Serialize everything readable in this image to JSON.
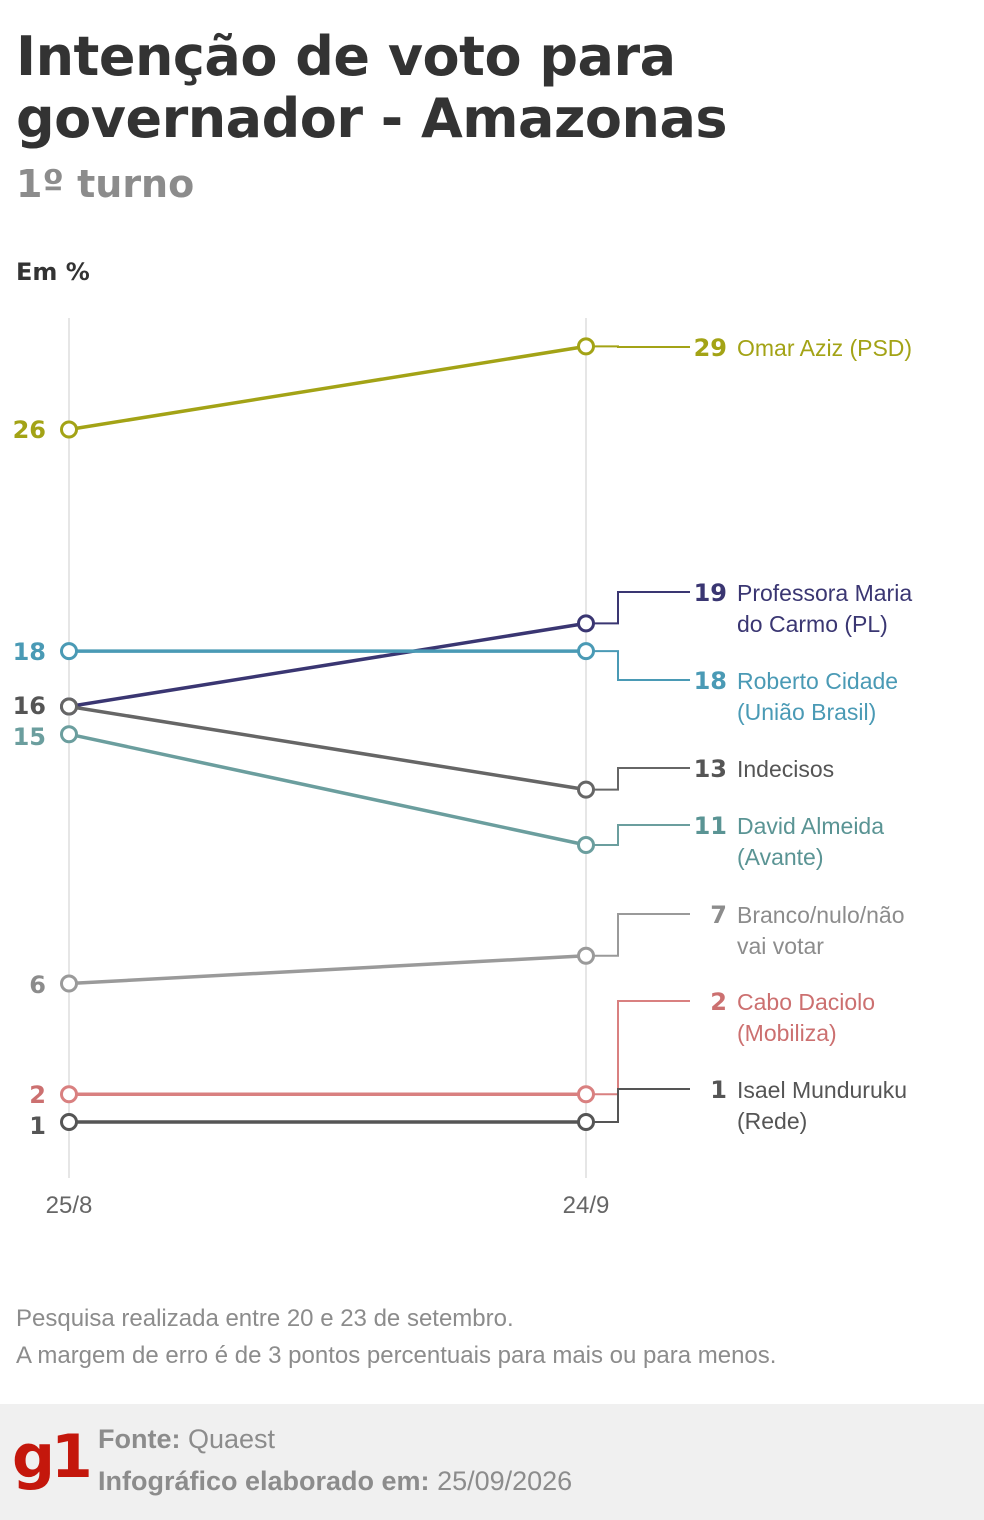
{
  "title": "Intenção de voto para governador - Amazonas",
  "subtitle": "1º turno",
  "unit_label": "Em %",
  "notes": [
    "Pesquisa realizada entre 20 e 23 de setembro.",
    "A margem de erro é de 3 pontos percentuais para mais ou para menos."
  ],
  "footer": {
    "logo": "g1",
    "source_label": "Fonte:",
    "source_value": "Quaest",
    "date_label": "Infográfico elaborado em:",
    "date_value": "25/09/2026"
  },
  "chart_data": {
    "type": "line",
    "x": [
      "25/8",
      "24/9"
    ],
    "ylim": [
      1,
      29
    ],
    "grid": "vertical lines at each survey date",
    "series": [
      {
        "name": "Omar Aziz (PSD)",
        "label_lines": [
          "Omar Aziz (PSD)"
        ],
        "values": [
          26,
          29
        ],
        "color": "#a3a316",
        "label_color": "#a3a316"
      },
      {
        "name": "Professora Maria do Carmo (PL)",
        "label_lines": [
          "Professora Maria",
          "do Carmo (PL)"
        ],
        "values": [
          16,
          19
        ],
        "color": "#3a3672",
        "label_color": "#3a3672"
      },
      {
        "name": "Roberto Cidade (União Brasil)",
        "label_lines": [
          "Roberto Cidade",
          "(União Brasil)"
        ],
        "values": [
          18,
          18
        ],
        "color": "#4a9ab5",
        "label_color": "#4a9ab5"
      },
      {
        "name": "Indecisos",
        "label_lines": [
          "Indecisos"
        ],
        "values": [
          16,
          13
        ],
        "color": "#666666",
        "label_color": "#555555"
      },
      {
        "name": "David Almeida (Avante)",
        "label_lines": [
          "David Almeida",
          "(Avante)"
        ],
        "values": [
          15,
          11
        ],
        "color": "#6b9e9e",
        "label_color": "#5a9494"
      },
      {
        "name": "Branco/nulo/não vai votar",
        "label_lines": [
          "Branco/nulo/não",
          "vai votar"
        ],
        "values": [
          6,
          7
        ],
        "color": "#9a9a9a",
        "label_color": "#8c8c8c"
      },
      {
        "name": "Cabo Daciolo (Mobiliza)",
        "label_lines": [
          "Cabo Daciolo",
          "(Mobiliza)"
        ],
        "values": [
          2,
          2
        ],
        "color": "#d98080",
        "label_color": "#cc7070"
      },
      {
        "name": "Isael Munduruku (Rede)",
        "label_lines": [
          "Isael Munduruku",
          "(Rede)"
        ],
        "values": [
          1,
          1
        ],
        "color": "#555555",
        "label_color": "#555555"
      }
    ],
    "left_labels": [
      {
        "text": "26",
        "color": "#a3a316"
      },
      {
        "text": "18",
        "color": "#4a9ab5"
      },
      {
        "text": "16",
        "color": "#555555"
      },
      {
        "text": "15",
        "color": "#6b9e9e"
      },
      {
        "text": "6",
        "color": "#8c8c8c"
      },
      {
        "text": "2",
        "color": "#cc7070"
      },
      {
        "text": "1",
        "color": "#555555"
      }
    ]
  }
}
